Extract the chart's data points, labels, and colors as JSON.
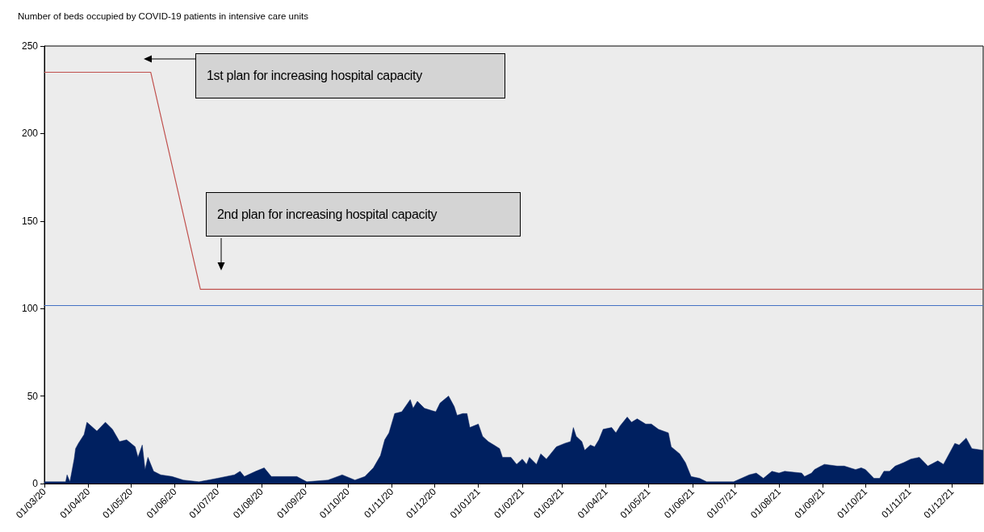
{
  "chart_data": {
    "type": "area",
    "title": "Number of beds occupied by COVID-19 patients in intensive care units",
    "xlim": [
      "2020-03-01",
      "2021-12-23"
    ],
    "xticks": [
      {
        "value": "2020-03-01",
        "label": "01/03/20"
      },
      {
        "value": "2020-04-01",
        "label": "01/04/20"
      },
      {
        "value": "2020-05-01",
        "label": "01/05/20"
      },
      {
        "value": "2020-06-01",
        "label": "01/06/20"
      },
      {
        "value": "2020-07-01",
        "label": "01/07/20"
      },
      {
        "value": "2020-08-01",
        "label": "01/08/20"
      },
      {
        "value": "2020-09-01",
        "label": "01/09/20"
      },
      {
        "value": "2020-10-01",
        "label": "01/10/20"
      },
      {
        "value": "2020-11-01",
        "label": "01/11/20"
      },
      {
        "value": "2020-12-01",
        "label": "01/12/20"
      },
      {
        "value": "2021-01-01",
        "label": "01/01/21"
      },
      {
        "value": "2021-02-01",
        "label": "01/02/21"
      },
      {
        "value": "2021-03-01",
        "label": "01/03/21"
      },
      {
        "value": "2021-04-01",
        "label": "01/04/21"
      },
      {
        "value": "2021-05-01",
        "label": "01/05/21"
      },
      {
        "value": "2021-06-01",
        "label": "01/06/21"
      },
      {
        "value": "2021-07-01",
        "label": "01/07/21"
      },
      {
        "value": "2021-08-01",
        "label": "01/08/21"
      },
      {
        "value": "2021-09-01",
        "label": "01/09/21"
      },
      {
        "value": "2021-10-01",
        "label": "01/10/21"
      },
      {
        "value": "2021-11-01",
        "label": "01/11/21"
      },
      {
        "value": "2021-12-01",
        "label": "01/12/21"
      }
    ],
    "ylim": [
      0,
      250
    ],
    "yticks": [
      0,
      50,
      100,
      150,
      200,
      250
    ],
    "series": [
      {
        "color": "#002060",
        "x": [
          "2020-03-01",
          "2020-03-16",
          "2020-03-17",
          "2020-03-19",
          "2020-03-22",
          "2020-03-23",
          "2020-03-25",
          "2020-03-29",
          "2020-03-31",
          "2020-04-07",
          "2020-04-13",
          "2020-04-18",
          "2020-04-23",
          "2020-04-28",
          "2020-05-04",
          "2020-05-06",
          "2020-05-09",
          "2020-05-11",
          "2020-05-13",
          "2020-05-17",
          "2020-05-22",
          "2020-05-30",
          "2020-06-07",
          "2020-06-18",
          "2020-07-01",
          "2020-07-13",
          "2020-07-17",
          "2020-07-20",
          "2020-07-28",
          "2020-08-03",
          "2020-08-08",
          "2020-08-18",
          "2020-08-26",
          "2020-09-02",
          "2020-09-17",
          "2020-09-27",
          "2020-10-06",
          "2020-10-13",
          "2020-10-19",
          "2020-10-24",
          "2020-10-27",
          "2020-10-30",
          "2020-11-03",
          "2020-11-08",
          "2020-11-14",
          "2020-11-16",
          "2020-11-19",
          "2020-11-24",
          "2020-12-02",
          "2020-12-05",
          "2020-12-11",
          "2020-12-15",
          "2020-12-17",
          "2020-12-21",
          "2020-12-24",
          "2020-12-26",
          "2021-01-01",
          "2021-01-04",
          "2021-01-08",
          "2021-01-12",
          "2021-01-16",
          "2021-01-18",
          "2021-01-24",
          "2021-01-28",
          "2021-02-01",
          "2021-02-04",
          "2021-02-06",
          "2021-02-11",
          "2021-02-14",
          "2021-02-18",
          "2021-02-21",
          "2021-02-25",
          "2021-03-03",
          "2021-03-07",
          "2021-03-09",
          "2021-03-11",
          "2021-03-15",
          "2021-03-17",
          "2021-03-21",
          "2021-03-24",
          "2021-03-27",
          "2021-03-30",
          "2021-04-05",
          "2021-04-08",
          "2021-04-11",
          "2021-04-16",
          "2021-04-19",
          "2021-04-23",
          "2021-04-29",
          "2021-05-03",
          "2021-05-08",
          "2021-05-15",
          "2021-05-17",
          "2021-05-23",
          "2021-05-27",
          "2021-05-31",
          "2021-06-06",
          "2021-06-11",
          "2021-06-30",
          "2021-07-11",
          "2021-07-16",
          "2021-07-21",
          "2021-07-27",
          "2021-08-01",
          "2021-08-05",
          "2021-08-17",
          "2021-08-19",
          "2021-08-24",
          "2021-08-26",
          "2021-09-02",
          "2021-09-11",
          "2021-09-16",
          "2021-09-24",
          "2021-09-28",
          "2021-10-01",
          "2021-10-07",
          "2021-10-11",
          "2021-10-14",
          "2021-10-18",
          "2021-10-22",
          "2021-10-28",
          "2021-11-02",
          "2021-11-08",
          "2021-11-14",
          "2021-11-21",
          "2021-11-25",
          "2021-11-29",
          "2021-12-03",
          "2021-12-06",
          "2021-12-11",
          "2021-12-15",
          "2021-12-23"
        ],
        "values": [
          1,
          1,
          5,
          1,
          14,
          20,
          23,
          28,
          35,
          30,
          35,
          31,
          24,
          25,
          21,
          15,
          22,
          8,
          15,
          7,
          5,
          4,
          2,
          1,
          3,
          5,
          7,
          4,
          7,
          9,
          4,
          4,
          4,
          1,
          2,
          5,
          2,
          4,
          9,
          16,
          25,
          29,
          40,
          41,
          48,
          43,
          47,
          43,
          41,
          46,
          50,
          44,
          39,
          40,
          40,
          32,
          34,
          27,
          24,
          22,
          20,
          15,
          15,
          11,
          14,
          11,
          15,
          11,
          17,
          14,
          17,
          21,
          23,
          24,
          32,
          27,
          24,
          19,
          22,
          21,
          25,
          31,
          32,
          29,
          33,
          38,
          35,
          37,
          34,
          34,
          31,
          29,
          21,
          17,
          12,
          4,
          3,
          1,
          1,
          5,
          6,
          3,
          7,
          6,
          7,
          6,
          4,
          6,
          8,
          11,
          10,
          10,
          8,
          9,
          8,
          3,
          3,
          7,
          7,
          10,
          12,
          14,
          15,
          10,
          13,
          11,
          17,
          23,
          22,
          26,
          20,
          19
        ]
      },
      {
        "type": "line",
        "color": "#c0504d",
        "x": [
          "2020-03-01",
          "2020-05-15",
          "2020-06-19",
          "2021-12-23"
        ],
        "values": [
          235,
          235,
          111,
          111
        ]
      }
    ],
    "ref_lines": [
      {
        "axis": "y",
        "value": 102,
        "color": "#4472c4"
      }
    ],
    "annotations": [
      "1st plan for increasing hospital capacity",
      "2nd plan for increasing hospital capacity"
    ]
  }
}
